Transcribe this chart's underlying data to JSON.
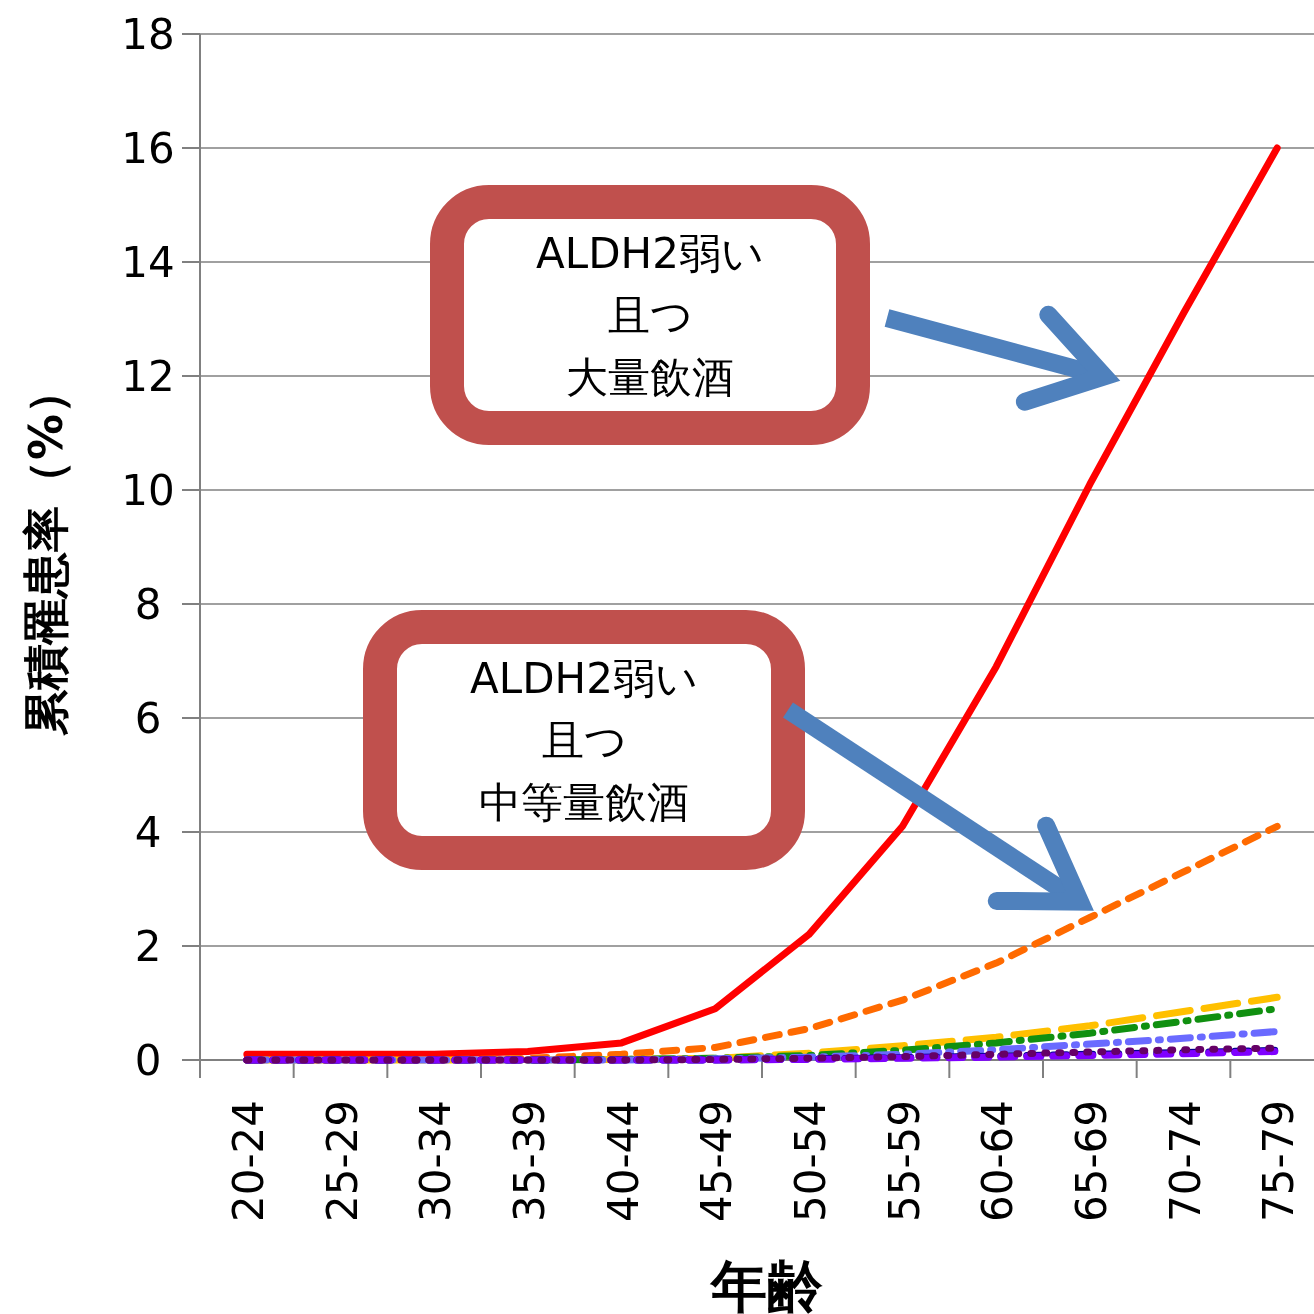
{
  "chart_data": {
    "type": "line",
    "xlabel": "年齢",
    "ylabel": "累積罹患率（%）",
    "categories": [
      "20-24",
      "25-29",
      "30-34",
      "35-39",
      "40-44",
      "45-49",
      "50-54",
      "55-59",
      "60-64",
      "65-69",
      "70-74",
      "75-79"
    ],
    "ylim": [
      0,
      18
    ],
    "yticks": [
      0,
      2,
      4,
      6,
      8,
      10,
      12,
      14,
      16,
      18
    ],
    "grid": "y",
    "marker": "none",
    "series": [
      {
        "color": "#ff0000",
        "line_style": "solid",
        "values": [
          0.1,
          0.1,
          0.1,
          0.15,
          0.3,
          0.9,
          2.2,
          4.1,
          6.9,
          10.1,
          13.1,
          16.0
        ]
      },
      {
        "color": "#ff6a00",
        "line_style": "dashed",
        "values": [
          0,
          0,
          0,
          0.03,
          0.1,
          0.22,
          0.55,
          1.05,
          1.7,
          2.5,
          3.3,
          4.1
        ]
      },
      {
        "color": "#ffc000",
        "line_style": "longdash",
        "values": [
          0,
          0,
          0,
          0,
          0.01,
          0.03,
          0.12,
          0.25,
          0.4,
          0.6,
          0.85,
          1.1
        ]
      },
      {
        "color": "#109010",
        "line_style": "dashdot",
        "values": [
          null,
          null,
          null,
          0,
          0.01,
          0.03,
          0.08,
          0.17,
          0.3,
          0.47,
          0.68,
          0.9
        ]
      },
      {
        "color": "#6a6aff",
        "line_style": "dashdot",
        "values": [
          0,
          0,
          0,
          0,
          0,
          0.02,
          0.05,
          0.1,
          0.18,
          0.28,
          0.38,
          0.5
        ]
      },
      {
        "color": "#000090",
        "line_style": "dashed",
        "values": [
          0,
          0,
          0,
          0,
          0,
          0,
          0.02,
          0.04,
          0.07,
          0.1,
          0.13,
          0.17
        ]
      },
      {
        "color": "#7f00ff",
        "line_style": "dashed",
        "values": [
          0,
          0,
          0,
          0,
          0,
          0,
          0.01,
          0.03,
          0.05,
          0.08,
          0.11,
          0.15
        ]
      },
      {
        "color": "#660066",
        "line_style": "dotted",
        "values": [
          0,
          0,
          0,
          0,
          0,
          0.01,
          0.03,
          0.06,
          0.1,
          0.14,
          0.18,
          0.21
        ]
      }
    ],
    "annotations": [
      "ALDH2弱い",
      "且つ",
      "大量飲酒",
      "ALDH2弱い",
      "且つ",
      "中等量飲酒"
    ]
  }
}
